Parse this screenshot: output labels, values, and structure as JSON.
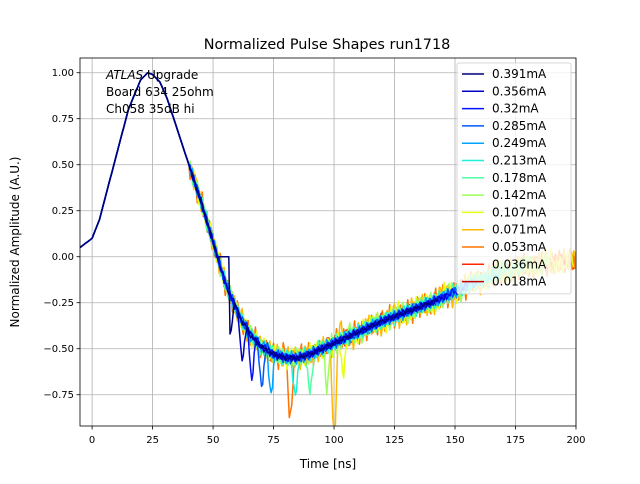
{
  "chart_data": {
    "type": "line",
    "title": "Normalized Pulse Shapes run1718",
    "xlabel": "Time [ns]",
    "ylabel": "Normalized Amplitude (A.U.)",
    "xlim": [
      -5,
      200
    ],
    "ylim": [
      -0.92,
      1.08
    ],
    "xticks": [
      0,
      25,
      50,
      75,
      100,
      125,
      150,
      175,
      200
    ],
    "yticks": [
      -0.75,
      -0.5,
      -0.25,
      0.0,
      0.25,
      0.5,
      0.75,
      1.0
    ],
    "ytick_labels": [
      "−0.75",
      "−0.50",
      "−0.25",
      "0.00",
      "0.25",
      "0.50",
      "0.75",
      "1.00"
    ],
    "grid": true,
    "legend_position": "upper-right",
    "annotation": {
      "lines": [
        "ATLAS Upgrade",
        " Board 634 25ohm",
        " Ch058 35dB hi"
      ],
      "italic_word": "ATLAS"
    },
    "base_shape": {
      "x": [
        -5,
        0,
        3,
        6,
        10,
        15,
        20,
        23,
        25,
        28,
        31,
        35,
        40,
        45,
        50,
        55,
        60,
        65,
        70,
        75,
        80,
        85,
        90,
        95,
        100,
        110,
        120,
        130,
        140,
        150,
        160,
        170,
        180,
        190,
        200
      ],
      "y": [
        0.05,
        0.1,
        0.2,
        0.35,
        0.55,
        0.8,
        0.96,
        1.0,
        0.99,
        0.95,
        0.86,
        0.7,
        0.5,
        0.3,
        0.08,
        -0.14,
        -0.3,
        -0.42,
        -0.49,
        -0.53,
        -0.55,
        -0.55,
        -0.53,
        -0.5,
        -0.47,
        -0.41,
        -0.35,
        -0.3,
        -0.25,
        -0.19,
        -0.13,
        -0.08,
        -0.05,
        -0.03,
        -0.02
      ]
    },
    "series": [
      {
        "name": "0.391mA",
        "color": "#00007f",
        "spike_x": 57
      },
      {
        "name": "0.356mA",
        "color": "#0000c8",
        "spike_x": 62
      },
      {
        "name": "0.32mA",
        "color": "#0010ff",
        "spike_x": 66
      },
      {
        "name": "0.285mA",
        "color": "#0058ff",
        "spike_x": 70
      },
      {
        "name": "0.249mA",
        "color": "#00a4ff",
        "spike_x": 74
      },
      {
        "name": "0.213mA",
        "color": "#1ff0d8",
        "spike_x": 84
      },
      {
        "name": "0.178mA",
        "color": "#52ffa4",
        "spike_x": 90
      },
      {
        "name": "0.142mA",
        "color": "#9aff5c",
        "spike_x": 97
      },
      {
        "name": "0.107mA",
        "color": "#e4ff12",
        "spike_x": 104
      },
      {
        "name": "0.071mA",
        "color": "#ffb900",
        "spike_x": 100
      },
      {
        "name": "0.053mA",
        "color": "#ff7300",
        "spike_x": 82
      },
      {
        "name": "0.036mA",
        "color": "#ff2800",
        "spike_x": 999
      },
      {
        "name": "0.018mA",
        "color": "#c30000",
        "spike_x": 999
      }
    ]
  }
}
